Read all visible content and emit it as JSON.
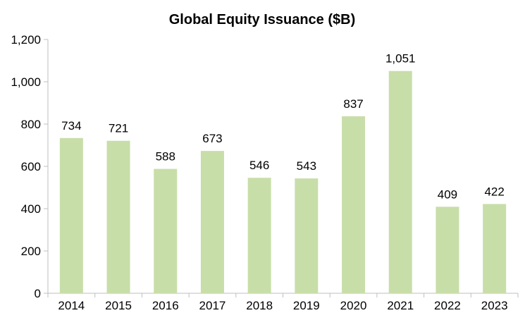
{
  "colors": {
    "bar": "#c8dea9",
    "axis": "#bfbfbf",
    "text": "#000000"
  },
  "chart_data": {
    "type": "bar",
    "title": "Global Equity Issuance ($B)",
    "categories": [
      "2014",
      "2015",
      "2016",
      "2017",
      "2018",
      "2019",
      "2020",
      "2021",
      "2022",
      "2023"
    ],
    "values": [
      734,
      721,
      588,
      673,
      546,
      543,
      837,
      1051,
      409,
      422
    ],
    "data_labels": [
      "734",
      "721",
      "588",
      "673",
      "546",
      "543",
      "837",
      "1,051",
      "409",
      "422"
    ],
    "y_ticks": [
      0,
      200,
      400,
      600,
      800,
      1000,
      1200
    ],
    "y_tick_labels": [
      "0",
      "200",
      "400",
      "600",
      "800",
      "1,000",
      "1,200"
    ],
    "ylim": [
      0,
      1200
    ],
    "xlabel": "",
    "ylabel": "",
    "grid": false,
    "legend": "none"
  }
}
